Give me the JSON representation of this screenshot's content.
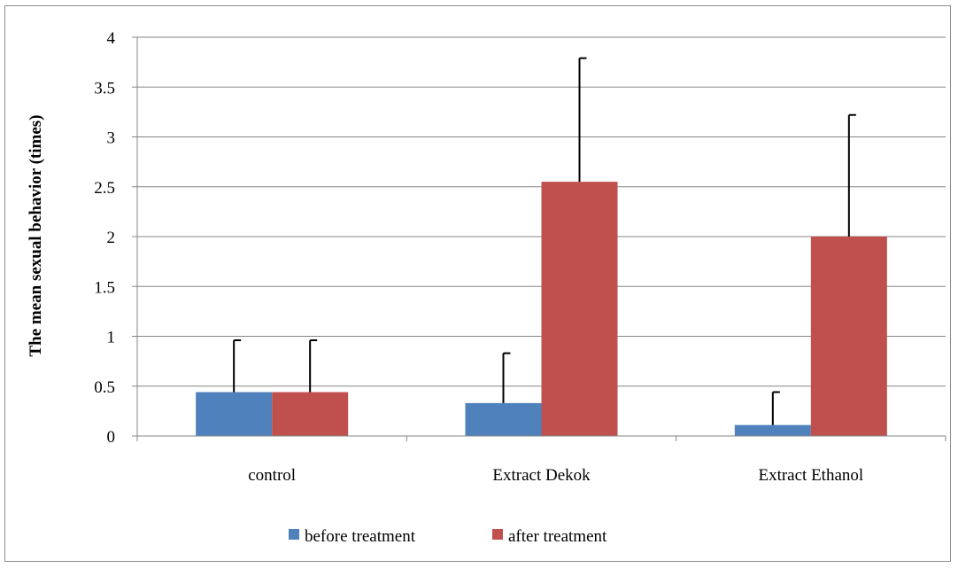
{
  "chart_data": {
    "type": "bar",
    "title": "",
    "xlabel": "",
    "ylabel": "The mean sexual behavior (times)",
    "categories": [
      "control",
      "Extract  Dekok",
      "Extract Ethanol"
    ],
    "series": [
      {
        "name": "before treatment",
        "color": "#4f81bd",
        "values": [
          0.44,
          0.33,
          0.11
        ],
        "error_plus": [
          0.52,
          0.5,
          0.33
        ]
      },
      {
        "name": "after treatment",
        "color": "#c0504d",
        "values": [
          0.44,
          2.55,
          2.0
        ],
        "error_plus": [
          0.52,
          1.24,
          1.22
        ]
      }
    ],
    "ylim": [
      0,
      4
    ],
    "yticks": [
      0,
      0.5,
      1,
      1.5,
      2,
      2.5,
      3,
      3.5,
      4
    ],
    "ytick_labels": [
      "0",
      "0.5",
      "1",
      "1.5",
      "2",
      "2.5",
      "3",
      "3.5",
      "4"
    ],
    "grid": true,
    "legend_position": "bottom"
  }
}
